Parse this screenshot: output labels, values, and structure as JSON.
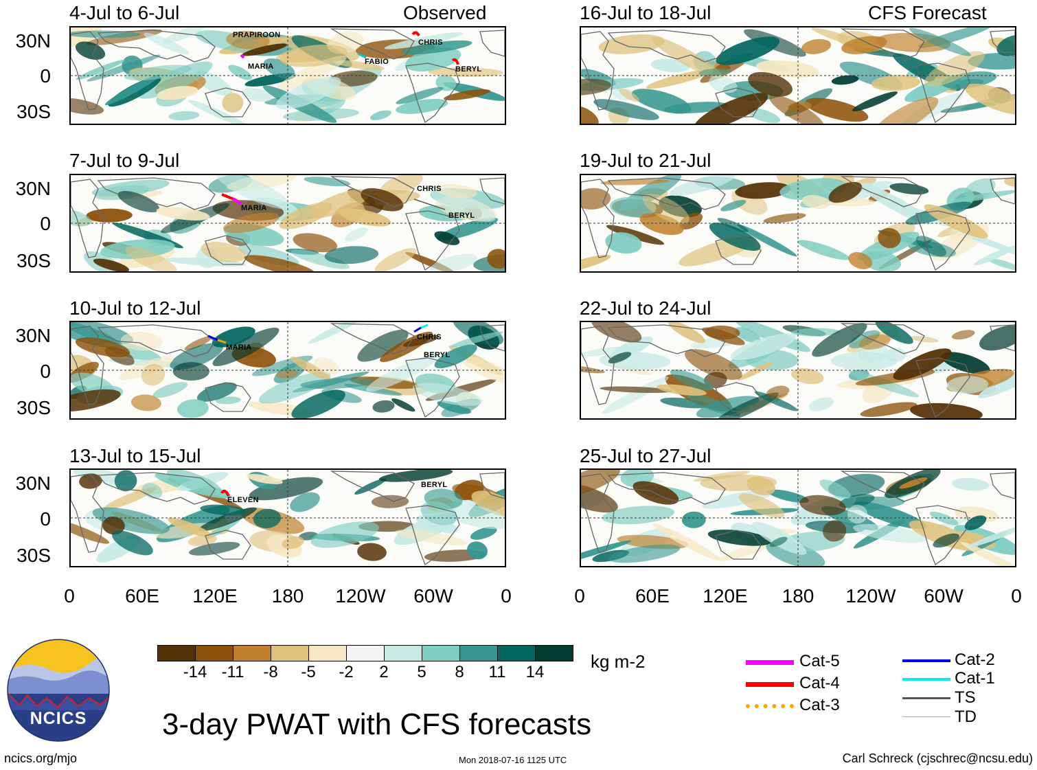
{
  "figure": {
    "title": "3-day PWAT with CFS forecasts",
    "units": "kg m-2",
    "website": "ncics.org/mjo",
    "timestamp": "Mon 2018-07-16 1125 UTC",
    "author": "Carl Schreck (cjschrec@ncsu.edu)",
    "logo_text": "NCICS"
  },
  "columns": {
    "left_header": "Observed",
    "right_header": "CFS Forecast"
  },
  "axes": {
    "lat_labels": [
      "30N",
      "0",
      "30S"
    ],
    "lon_labels": [
      "0",
      "60E",
      "120E",
      "180",
      "120W",
      "60W",
      "0"
    ]
  },
  "panels": {
    "p1": {
      "title": "4-Jul to 6-Jul",
      "storms": [
        "PRAPIROON",
        "MARIA",
        "FABIO",
        "CHRIS",
        "BERYL"
      ]
    },
    "p2": {
      "title": "7-Jul to 9-Jul",
      "storms": [
        "MARIA",
        "CHRIS",
        "BERYL"
      ]
    },
    "p3": {
      "title": "10-Jul to 12-Jul",
      "storms": [
        "MARIA",
        "CHRIS",
        "BERYL"
      ]
    },
    "p4": {
      "title": "13-Jul to 15-Jul",
      "storms": [
        "ELEVEN",
        "BERYL"
      ]
    },
    "p5": {
      "title": "16-Jul to 18-Jul"
    },
    "p6": {
      "title": "19-Jul to 21-Jul"
    },
    "p7": {
      "title": "22-Jul to 24-Jul"
    },
    "p8": {
      "title": "25-Jul to 27-Jul"
    }
  },
  "colorbar": {
    "labels": [
      "-14",
      "-11",
      "-8",
      "-5",
      "-2",
      "2",
      "5",
      "8",
      "11",
      "14"
    ],
    "colors": [
      "#543005",
      "#8c5109",
      "#bf812d",
      "#dfc27d",
      "#f6e8c3",
      "#f5f5f5",
      "#c7eae5",
      "#80cdc1",
      "#35978f",
      "#01665e",
      "#003c30"
    ]
  },
  "legend": {
    "items": [
      {
        "label": "Cat-5",
        "color": "#ff00ff"
      },
      {
        "label": "Cat-4",
        "color": "#ff0000"
      },
      {
        "label": "Cat-3",
        "color": "#ffa500"
      },
      {
        "label": "Cat-2",
        "color": "#0000ee"
      },
      {
        "label": "Cat-1",
        "color": "#00eeee"
      },
      {
        "label": "TS",
        "color": "#555555"
      },
      {
        "label": "TD",
        "color": "#aaaaaa"
      }
    ]
  }
}
